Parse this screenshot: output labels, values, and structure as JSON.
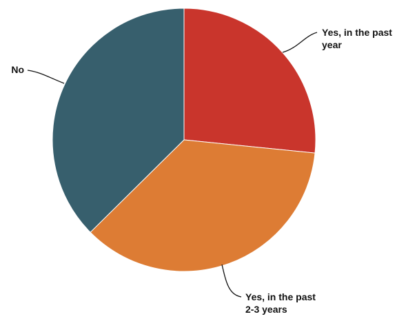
{
  "chart_data": {
    "type": "pie",
    "title": "",
    "start_angle_deg": 0,
    "direction": "clockwise",
    "slices": [
      {
        "label": [
          "Yes, in the past",
          "year"
        ],
        "value": 26.6,
        "color": "#c9352c"
      },
      {
        "label": [
          "Yes, in the past",
          "2-3 years"
        ],
        "value": 36.0,
        "color": "#dd7c34"
      },
      {
        "label": [
          "No"
        ],
        "value": 37.4,
        "color": "#375f6d"
      }
    ],
    "legend": "none",
    "data_labels": "outside with leader lines"
  }
}
